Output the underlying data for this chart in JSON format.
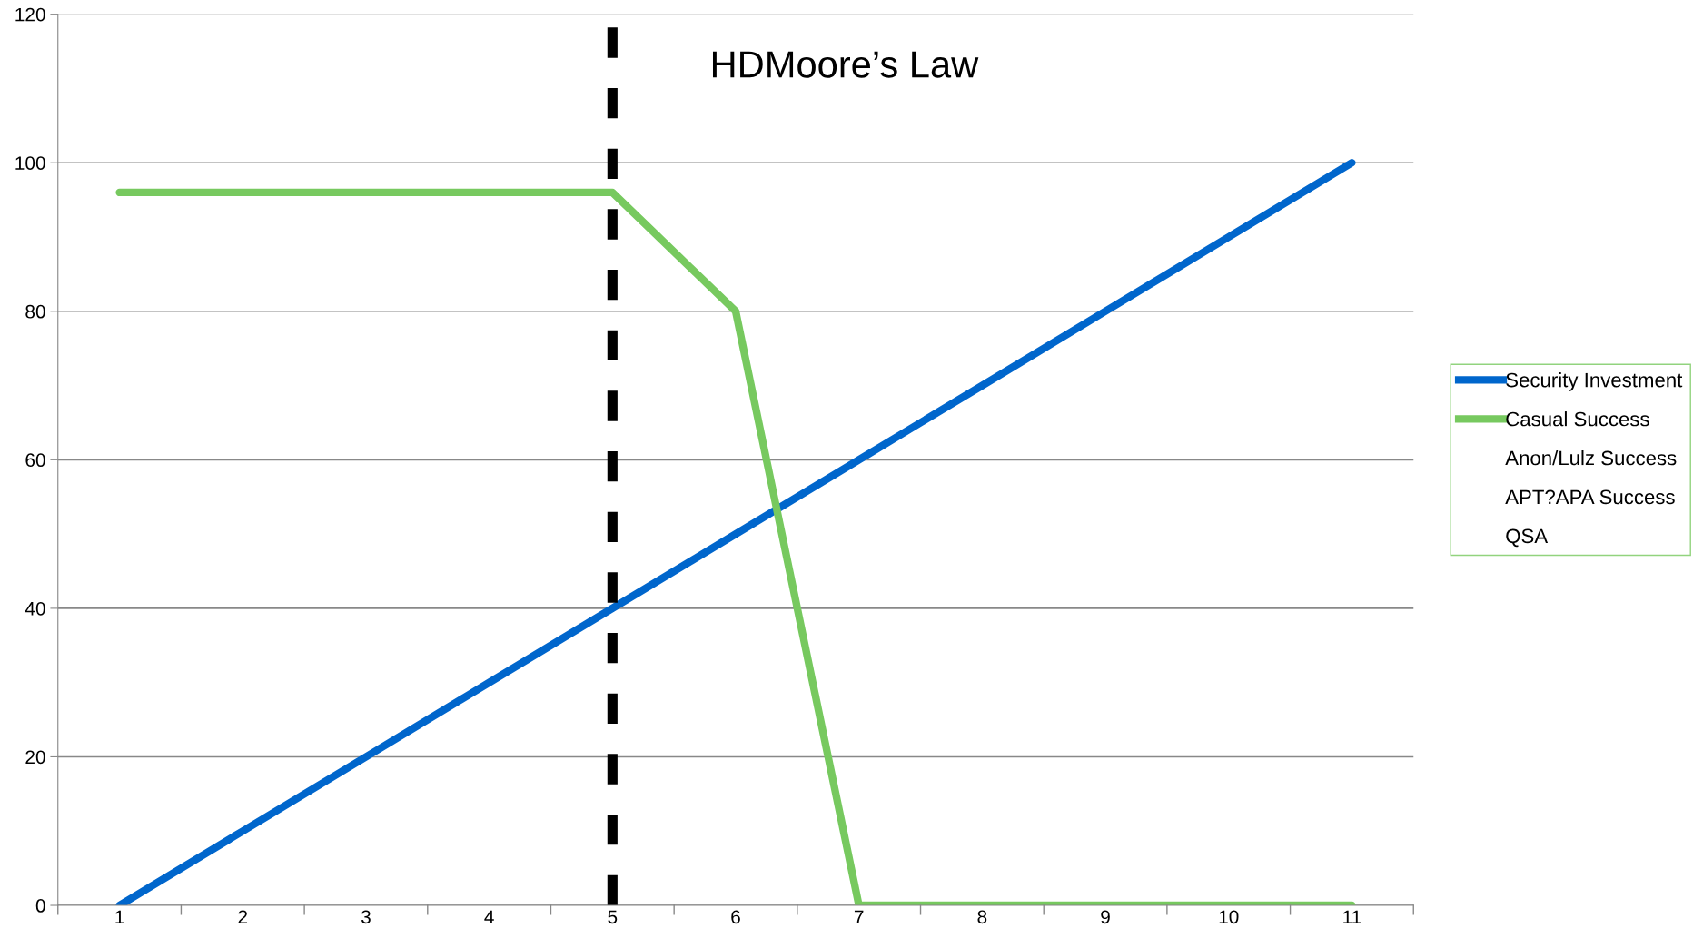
{
  "chart_data": {
    "type": "line",
    "title": "HDMoore’s Law",
    "categories": [
      "1",
      "2",
      "3",
      "4",
      "5",
      "6",
      "7",
      "8",
      "9",
      "10",
      "11"
    ],
    "series": [
      {
        "name": "Security Investment",
        "color": "#0066cc",
        "values": [
          0,
          10,
          20,
          30,
          40,
          50,
          60,
          70,
          80,
          90,
          100
        ]
      },
      {
        "name": "Casual Success",
        "color": "#77c95f",
        "values": [
          96,
          96,
          96,
          96,
          96,
          80,
          0,
          0,
          0,
          0,
          0
        ]
      },
      {
        "name": "Anon/Lulz Success",
        "values": [
          null,
          null,
          null,
          null,
          null,
          null,
          null,
          null,
          null,
          null,
          null
        ]
      },
      {
        "name": "APT?APA Success",
        "values": [
          null,
          null,
          null,
          null,
          null,
          null,
          null,
          null,
          null,
          null,
          null
        ]
      },
      {
        "name": "QSA",
        "values": [
          null,
          null,
          null,
          null,
          null,
          null,
          null,
          null,
          null,
          null,
          null
        ]
      }
    ],
    "ylim": [
      0,
      120
    ],
    "yticks": [
      0,
      20,
      40,
      60,
      80,
      100,
      120
    ],
    "ref_lines": [
      {
        "axis": "x",
        "value": "5",
        "color": "#000000",
        "line_style": "dashed"
      }
    ],
    "grid": "y",
    "legend": "right",
    "marker": "none",
    "line_style": "solid"
  }
}
